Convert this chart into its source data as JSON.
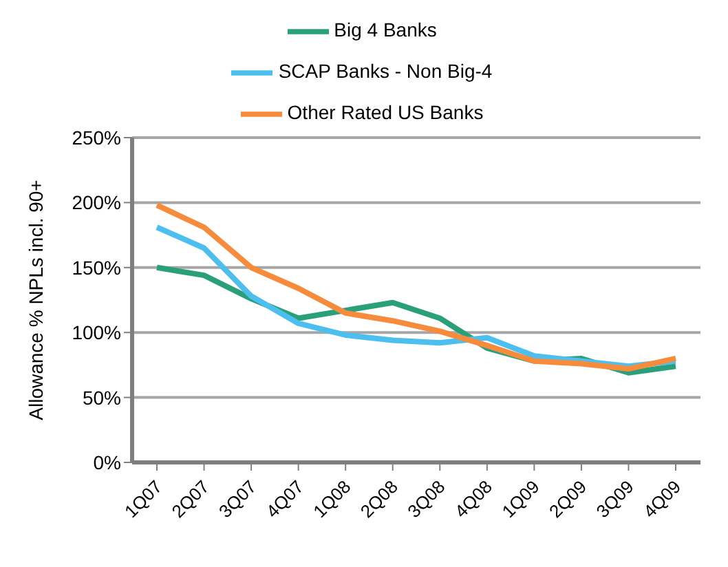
{
  "chart_data": {
    "type": "line",
    "ylabel": "Allowance % NPLs incl. 90+",
    "categories": [
      "1Q07",
      "2Q07",
      "3Q07",
      "4Q07",
      "1Q08",
      "2Q08",
      "3Q08",
      "4Q08",
      "1Q09",
      "2Q09",
      "3Q09",
      "4Q09"
    ],
    "series": [
      {
        "name": "Big 4 Banks",
        "color": "#2aa07a",
        "values": [
          150,
          144,
          126,
          111,
          117,
          123,
          111,
          88,
          78,
          80,
          69,
          74
        ]
      },
      {
        "name": "SCAP Banks - Non Big-4",
        "color": "#4dbfef",
        "values": [
          181,
          165,
          128,
          107,
          98,
          94,
          92,
          96,
          82,
          78,
          74,
          78
        ]
      },
      {
        "name": "Other Rated US Banks",
        "color": "#f68b3c",
        "values": [
          198,
          181,
          150,
          134,
          115,
          109,
          101,
          90,
          78,
          76,
          72,
          80
        ]
      }
    ],
    "ylim": [
      0,
      250
    ],
    "yticks": [
      {
        "value": 0,
        "label": "0%"
      },
      {
        "value": 50,
        "label": "50%"
      },
      {
        "value": 100,
        "label": "100%"
      },
      {
        "value": 150,
        "label": "150%"
      },
      {
        "value": 200,
        "label": "200%"
      },
      {
        "value": 250,
        "label": "250%"
      }
    ],
    "grid": "y",
    "legend": "top",
    "marker": "none",
    "line_style": "solid"
  }
}
